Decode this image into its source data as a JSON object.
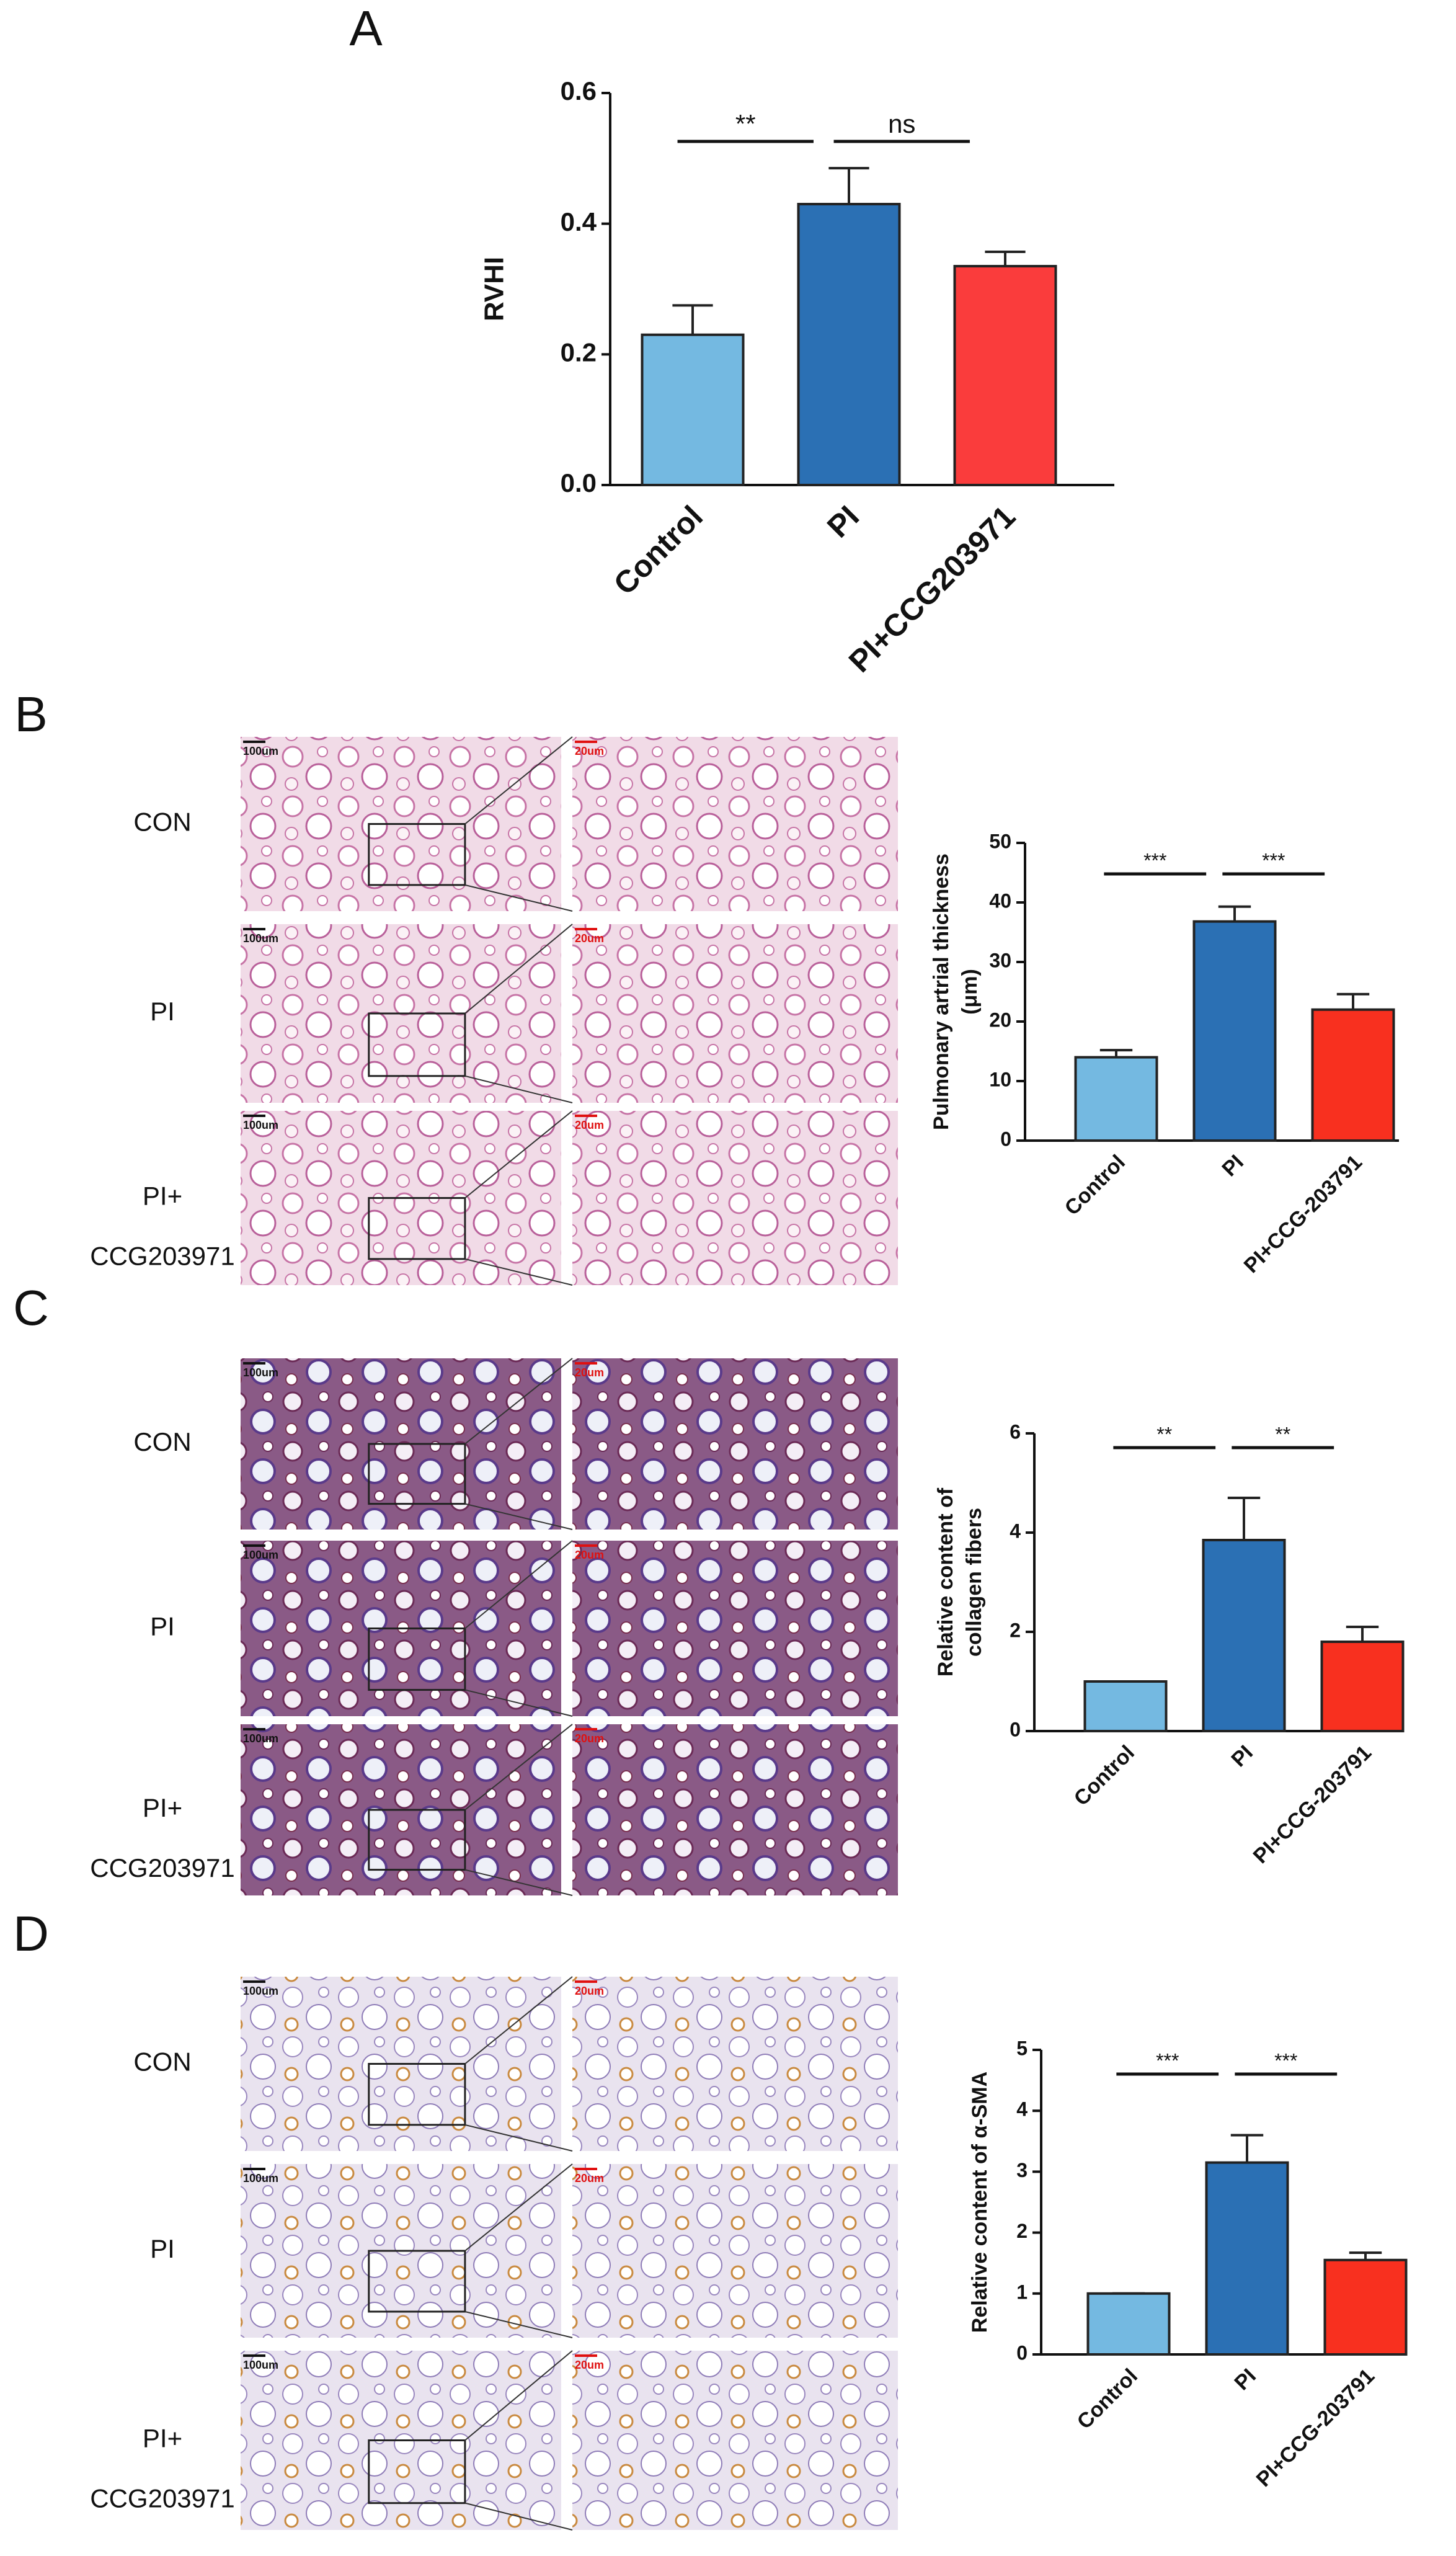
{
  "chart_data": [
    {
      "type": "bar",
      "panel": "A",
      "ylabel": [
        "RVHI"
      ],
      "categories": [
        "Control",
        "PI",
        "PI+CCG203971"
      ],
      "values": [
        0.23,
        0.43,
        0.335
      ],
      "errors": [
        0.045,
        0.055,
        0.022
      ],
      "colors": [
        "#74b9e1",
        "#2b70b4",
        "#fa3c3c"
      ],
      "ylim": [
        0,
        0.6
      ],
      "yticks": [
        {
          "value": 0,
          "label": "0.0"
        },
        0.2,
        0.4,
        0.6
      ],
      "significance": [
        "**",
        "ns"
      ]
    },
    {
      "type": "bar",
      "panel": "B",
      "ylabel": [
        "Pulmonary artrial thickness",
        "(μm)"
      ],
      "categories": [
        "Control",
        "PI",
        "PI+CCG-203791"
      ],
      "values": [
        14,
        36.8,
        22
      ],
      "errors": [
        1.2,
        2.5,
        2.6
      ],
      "colors": [
        "#74b9e1",
        "#2b70b4",
        "#f8301f"
      ],
      "ylim": [
        0,
        50
      ],
      "yticks": [
        0,
        10,
        20,
        30,
        40,
        50
      ],
      "significance": [
        "***",
        "***"
      ],
      "image_rows": [
        [
          "CON"
        ],
        [
          "PI"
        ],
        [
          "PI+",
          "CCG203971"
        ]
      ],
      "scale_labels": [
        "100um",
        "20um"
      ]
    },
    {
      "type": "bar",
      "panel": "C",
      "ylabel": [
        "Relative content of",
        "collagen fibers"
      ],
      "categories": [
        "Control",
        "PI",
        "PI+CCG-203791"
      ],
      "values": [
        1,
        3.85,
        1.8
      ],
      "errors": [
        0,
        0.85,
        0.3
      ],
      "colors": [
        "#74b9e1",
        "#2b70b4",
        "#f8301f"
      ],
      "ylim": [
        0,
        6
      ],
      "yticks": [
        0,
        2,
        4,
        6
      ],
      "significance": [
        "**",
        "**"
      ],
      "image_rows": [
        [
          "CON"
        ],
        [
          "PI"
        ],
        [
          "PI+",
          "CCG203971"
        ]
      ],
      "scale_labels": [
        "100um",
        "20um"
      ]
    },
    {
      "type": "bar",
      "panel": "D",
      "ylabel": [
        "Relative content of α-SMA"
      ],
      "categories": [
        "Control",
        "PI",
        "PI+CCG-203791"
      ],
      "values": [
        1,
        3.15,
        1.55
      ],
      "errors": [
        0,
        0.45,
        0.12
      ],
      "colors": [
        "#74b9e1",
        "#2b70b4",
        "#f8301f"
      ],
      "ylim": [
        0,
        5
      ],
      "yticks": [
        0,
        1,
        2,
        3,
        4,
        5
      ],
      "significance": [
        "***",
        "***"
      ],
      "image_rows": [
        [
          "CON"
        ],
        [
          "PI"
        ],
        [
          "PI+",
          "CCG203971"
        ]
      ],
      "scale_labels": [
        "100um",
        "20um"
      ]
    }
  ]
}
